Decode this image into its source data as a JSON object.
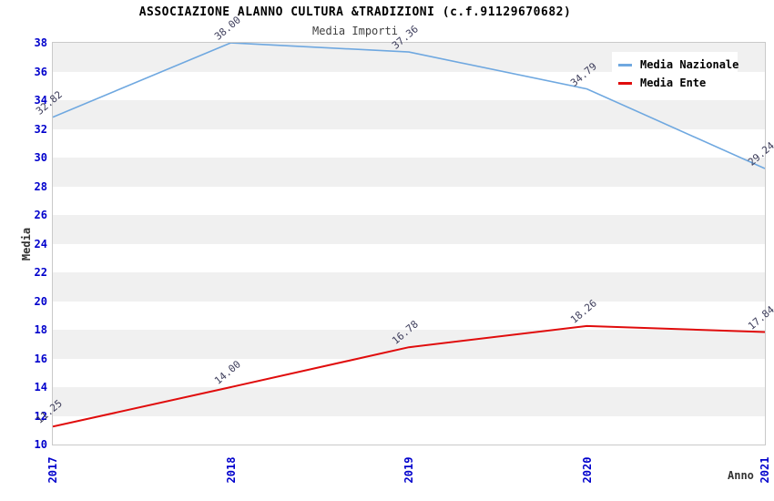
{
  "title": "ASSOCIAZIONE ALANNO CULTURA &TRADIZIONI (c.f.91129670682)",
  "subtitle": "Media Importi",
  "chart_data": {
    "type": "line",
    "x": [
      "2017",
      "2018",
      "2019",
      "2020",
      "2021"
    ],
    "series": [
      {
        "name": "Media Nazionale",
        "color": "#6fa8e0",
        "values": [
          32.82,
          38.0,
          37.36,
          34.79,
          29.24
        ]
      },
      {
        "name": "Media Ente",
        "color": "#e00c0c",
        "values": [
          11.25,
          14.0,
          16.78,
          18.26,
          17.84
        ]
      }
    ],
    "xlabel": "Anno",
    "ylabel": "Media",
    "ylim": [
      10,
      38
    ],
    "ytick_step": 2,
    "point_labels_format": "2-decimals",
    "legend_position": "top-right",
    "grid": "alternating-horizontal-bands",
    "band_color": "#f0f0f0",
    "tick_label_color": "#0000cc",
    "point_label_color": "#3c3c5a",
    "plot_border_color": "#c9c9c9"
  }
}
